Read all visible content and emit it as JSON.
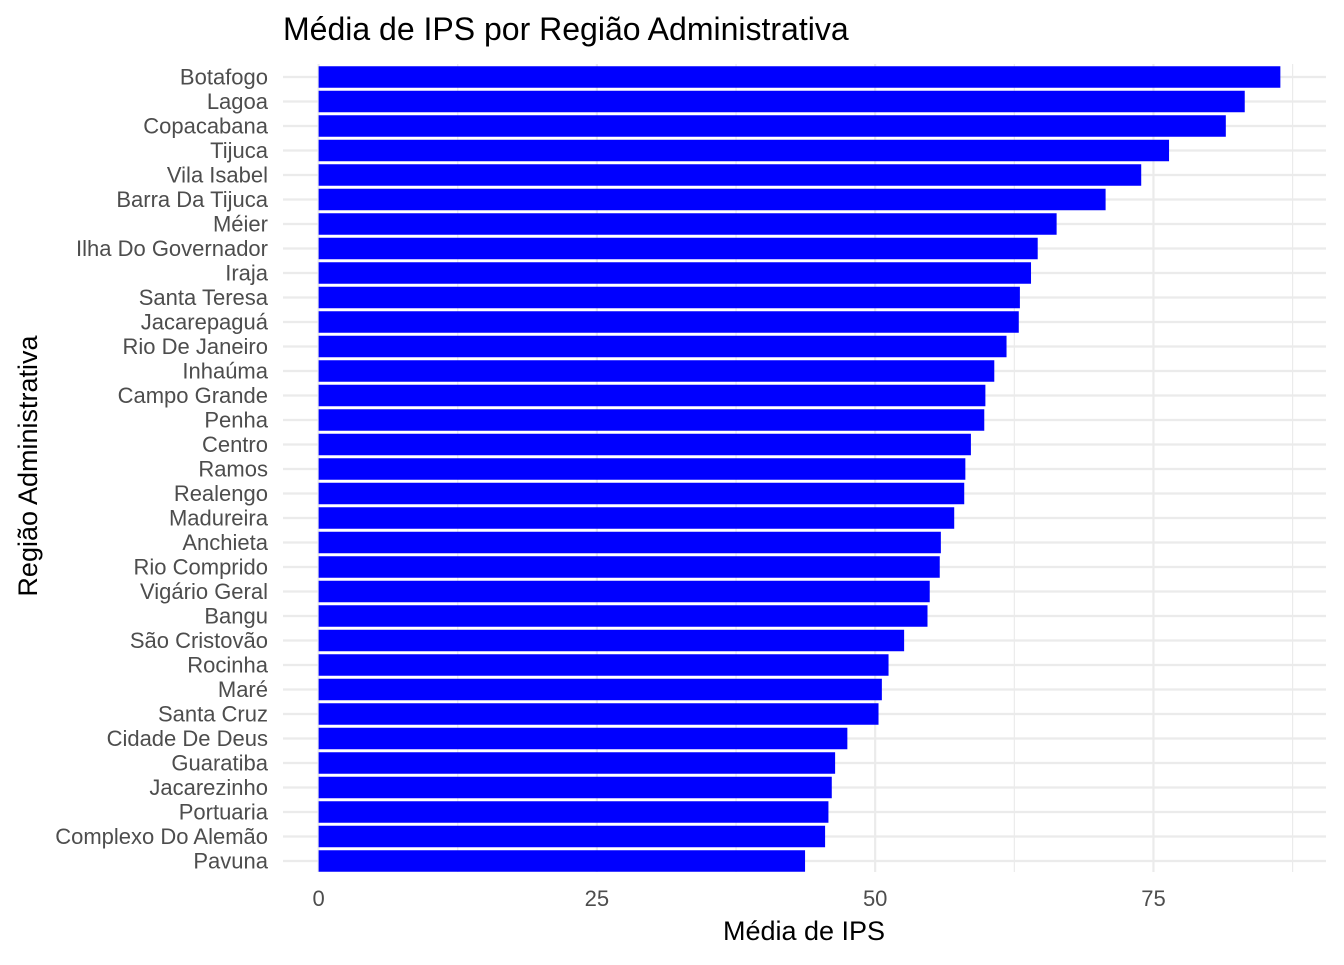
{
  "chart_data": {
    "type": "bar",
    "orientation": "horizontal",
    "title": "Média de IPS por Região Administrativa",
    "xlabel": "Média de IPS",
    "ylabel": "Região Administrativa",
    "xlim": [
      -3.2,
      90.5
    ],
    "xticks": [
      0,
      25,
      50,
      75
    ],
    "grid": true,
    "legend": "none",
    "bar_color": "#0000FF",
    "gridline_color": "#EBEBEB",
    "text_color": "#4D4D4D",
    "categories": [
      "Botafogo",
      "Lagoa",
      "Copacabana",
      "Tijuca",
      "Vila Isabel",
      "Barra Da Tijuca",
      "Méier",
      "Ilha Do Governador",
      "Iraja",
      "Santa Teresa",
      "Jacarepaguá",
      "Rio De Janeiro",
      "Inhaúma",
      "Campo Grande",
      "Penha",
      "Centro",
      "Ramos",
      "Realengo",
      "Madureira",
      "Anchieta",
      "Rio Comprido",
      "Vigário Geral",
      "Bangu",
      "São Cristovão",
      "Rocinha",
      "Maré",
      "Santa Cruz",
      "Cidade De Deus",
      "Guaratiba",
      "Jacarezinho",
      "Portuaria",
      "Complexo Do Alemão",
      "Pavuna"
    ],
    "values": [
      86.4,
      83.2,
      81.5,
      76.4,
      73.9,
      70.7,
      66.3,
      64.6,
      64.0,
      63.0,
      62.9,
      61.8,
      60.7,
      59.9,
      59.8,
      58.6,
      58.1,
      58.0,
      57.1,
      55.9,
      55.8,
      54.9,
      54.7,
      52.6,
      51.2,
      50.6,
      50.3,
      47.5,
      46.4,
      46.1,
      45.8,
      45.5,
      43.7
    ]
  }
}
